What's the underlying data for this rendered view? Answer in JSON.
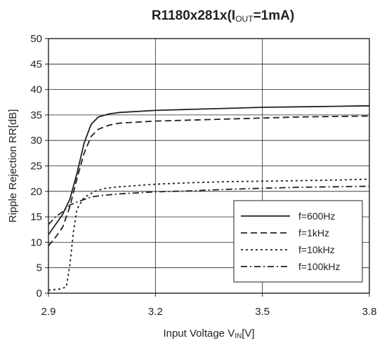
{
  "chart_data": {
    "type": "line",
    "title_main": "R1180x281x(I",
    "title_sub": "OUT",
    "title_tail": "=1mA)",
    "xlabel_main": "Input Voltage V",
    "xlabel_sub": "IN",
    "xlabel_tail": "[V]",
    "ylabel": "Ripple Rejection RR[dB]",
    "xlim": [
      2.9,
      3.8
    ],
    "ylim": [
      0,
      50
    ],
    "x_ticks": [
      "2.9",
      "3.2",
      "3.5",
      "3.8"
    ],
    "x_tick_values": [
      2.9,
      3.2,
      3.5,
      3.8
    ],
    "y_ticks": [
      "0",
      "5",
      "10",
      "15",
      "20",
      "25",
      "30",
      "35",
      "40",
      "45",
      "50"
    ],
    "y_tick_values": [
      0,
      5,
      10,
      15,
      20,
      25,
      30,
      35,
      40,
      45,
      50
    ],
    "grid": "vertical lines at x ticks, horizontal lines at y ticks",
    "legend_position": "lower-right",
    "series": [
      {
        "name": "f=600Hz",
        "style": "solid",
        "points": [
          [
            2.9,
            11.5
          ],
          [
            2.92,
            13.5
          ],
          [
            2.94,
            15.5
          ],
          [
            2.96,
            18.5
          ],
          [
            2.98,
            23.5
          ],
          [
            3.0,
            29.5
          ],
          [
            3.02,
            33.2
          ],
          [
            3.04,
            34.6
          ],
          [
            3.07,
            35.2
          ],
          [
            3.1,
            35.5
          ],
          [
            3.2,
            35.9
          ],
          [
            3.3,
            36.1
          ],
          [
            3.4,
            36.3
          ],
          [
            3.5,
            36.5
          ],
          [
            3.6,
            36.6
          ],
          [
            3.7,
            36.7
          ],
          [
            3.8,
            36.8
          ]
        ]
      },
      {
        "name": "f=1kHz",
        "style": "dashed",
        "points": [
          [
            2.9,
            9.3
          ],
          [
            2.92,
            11.0
          ],
          [
            2.94,
            13.0
          ],
          [
            2.96,
            17.0
          ],
          [
            2.98,
            22.5
          ],
          [
            3.0,
            27.5
          ],
          [
            3.02,
            30.8
          ],
          [
            3.04,
            32.2
          ],
          [
            3.07,
            33.0
          ],
          [
            3.1,
            33.4
          ],
          [
            3.2,
            33.8
          ],
          [
            3.3,
            34.0
          ],
          [
            3.4,
            34.2
          ],
          [
            3.5,
            34.4
          ],
          [
            3.6,
            34.6
          ],
          [
            3.7,
            34.7
          ],
          [
            3.8,
            34.8
          ]
        ]
      },
      {
        "name": "f=10kHz",
        "style": "dotted",
        "points": [
          [
            2.9,
            0.6
          ],
          [
            2.93,
            0.8
          ],
          [
            2.95,
            1.2
          ],
          [
            2.96,
            5.5
          ],
          [
            2.97,
            12.0
          ],
          [
            2.98,
            16.5
          ],
          [
            3.0,
            18.8
          ],
          [
            3.03,
            20.0
          ],
          [
            3.06,
            20.6
          ],
          [
            3.1,
            20.9
          ],
          [
            3.2,
            21.4
          ],
          [
            3.3,
            21.7
          ],
          [
            3.4,
            21.9
          ],
          [
            3.5,
            22.0
          ],
          [
            3.6,
            22.1
          ],
          [
            3.7,
            22.2
          ],
          [
            3.8,
            22.4
          ]
        ]
      },
      {
        "name": "f=100kHz",
        "style": "dashdot",
        "points": [
          [
            2.9,
            13.5
          ],
          [
            2.92,
            15.0
          ],
          [
            2.94,
            16.0
          ],
          [
            2.96,
            17.3
          ],
          [
            2.98,
            17.9
          ],
          [
            3.0,
            18.4
          ],
          [
            3.02,
            18.9
          ],
          [
            3.05,
            19.2
          ],
          [
            3.1,
            19.5
          ],
          [
            3.2,
            19.9
          ],
          [
            3.3,
            20.1
          ],
          [
            3.4,
            20.4
          ],
          [
            3.5,
            20.6
          ],
          [
            3.6,
            20.8
          ],
          [
            3.7,
            20.9
          ],
          [
            3.8,
            21.0
          ]
        ]
      }
    ]
  }
}
